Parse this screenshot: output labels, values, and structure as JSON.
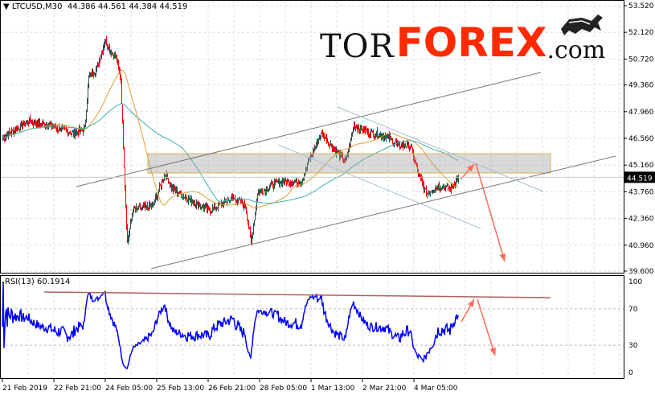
{
  "header": {
    "symbol_label": "LTCUSD,M30",
    "ohlc": "44.386 44.561 44.384 44.519",
    "dropdown_icon": "triangle-down-icon"
  },
  "logo": {
    "tor": "TOR",
    "forex": "FOREX",
    "com": ".com",
    "icon": "bull-icon",
    "brand_color": "#ff2a00"
  },
  "rsi": {
    "label": "RSI(13) 60.1914",
    "levels": [
      70,
      30
    ],
    "axis": [
      "100",
      "70",
      "30",
      "0"
    ],
    "color": "#0000ff"
  },
  "chart_data": {
    "type": "candlestick",
    "symbol": "LTCUSD",
    "timeframe": "M30",
    "last_price": "44.519",
    "price_axis": [
      "53.520",
      "52.120",
      "50.720",
      "49.360",
      "47.960",
      "46.560",
      "45.160",
      "43.760",
      "42.360",
      "40.960",
      "39.600"
    ],
    "ylim": [
      39.6,
      53.52
    ],
    "time_axis": [
      "21 Feb 2019",
      "22 Feb 21:00",
      "24 Feb 05:00",
      "25 Feb 13:00",
      "26 Feb 21:00",
      "28 Feb 05:00",
      "1 Mar 13:00",
      "2 Mar 21:00",
      "4 Mar 05:00"
    ],
    "grid": true,
    "colors": {
      "bull": "#2f4f4f",
      "bear": "#ff0000",
      "ma_fast": "#e0a030",
      "ma_slow": "#40b0b0",
      "arrows": "#ff6a5a"
    },
    "close_path": [
      [
        "21 Feb 13:00",
        46.61
      ],
      [
        "22 Feb 05:00",
        47.46
      ],
      [
        "22 Feb 17:30",
        47.25
      ],
      [
        "23 Feb 08:30",
        46.83
      ],
      [
        "23 Feb 16:00",
        47.04
      ],
      [
        "23 Feb 18:30",
        49.79
      ],
      [
        "23 Feb 23:30",
        50.22
      ],
      [
        "24 Feb 04:30",
        51.7
      ],
      [
        "24 Feb 12:00",
        50.64
      ],
      [
        "24 Feb 14:30",
        49.58
      ],
      [
        "24 Feb 17:00",
        44.07
      ],
      [
        "24 Feb 18:30",
        41.1
      ],
      [
        "24 Feb 22:00",
        42.8
      ],
      [
        "25 Feb 10:30",
        43.01
      ],
      [
        "25 Feb 18:00",
        44.71
      ],
      [
        "25 Feb 23:00",
        43.86
      ],
      [
        "26 Feb 11:30",
        43.22
      ],
      [
        "26 Feb 21:30",
        42.8
      ],
      [
        "27 Feb 12:30",
        43.44
      ],
      [
        "27 Feb 20:00",
        43.01
      ],
      [
        "27 Feb 23:30",
        41.1
      ],
      [
        "28 Feb 03:30",
        43.65
      ],
      [
        "28 Feb 16:00",
        44.28
      ],
      [
        "1 Mar 07:00",
        44.28
      ],
      [
        "1 Mar 12:00",
        45.55
      ],
      [
        "1 Mar 19:30",
        46.83
      ],
      [
        "2 Mar 03:00",
        45.98
      ],
      [
        "2 Mar 10:30",
        45.34
      ],
      [
        "2 Mar 15:30",
        47.25
      ],
      [
        "3 Mar 01:30",
        46.83
      ],
      [
        "3 Mar 11:30",
        46.7
      ],
      [
        "3 Mar 19:00",
        46.19
      ],
      [
        "4 Mar 02:30",
        46.19
      ],
      [
        "4 Mar 07:30",
        44.71
      ],
      [
        "4 Mar 12:30",
        43.65
      ],
      [
        "4 Mar 20:00",
        44.07
      ],
      [
        "5 Mar 03:30",
        43.94
      ],
      [
        "5 Mar 08:30",
        44.52
      ]
    ]
  }
}
